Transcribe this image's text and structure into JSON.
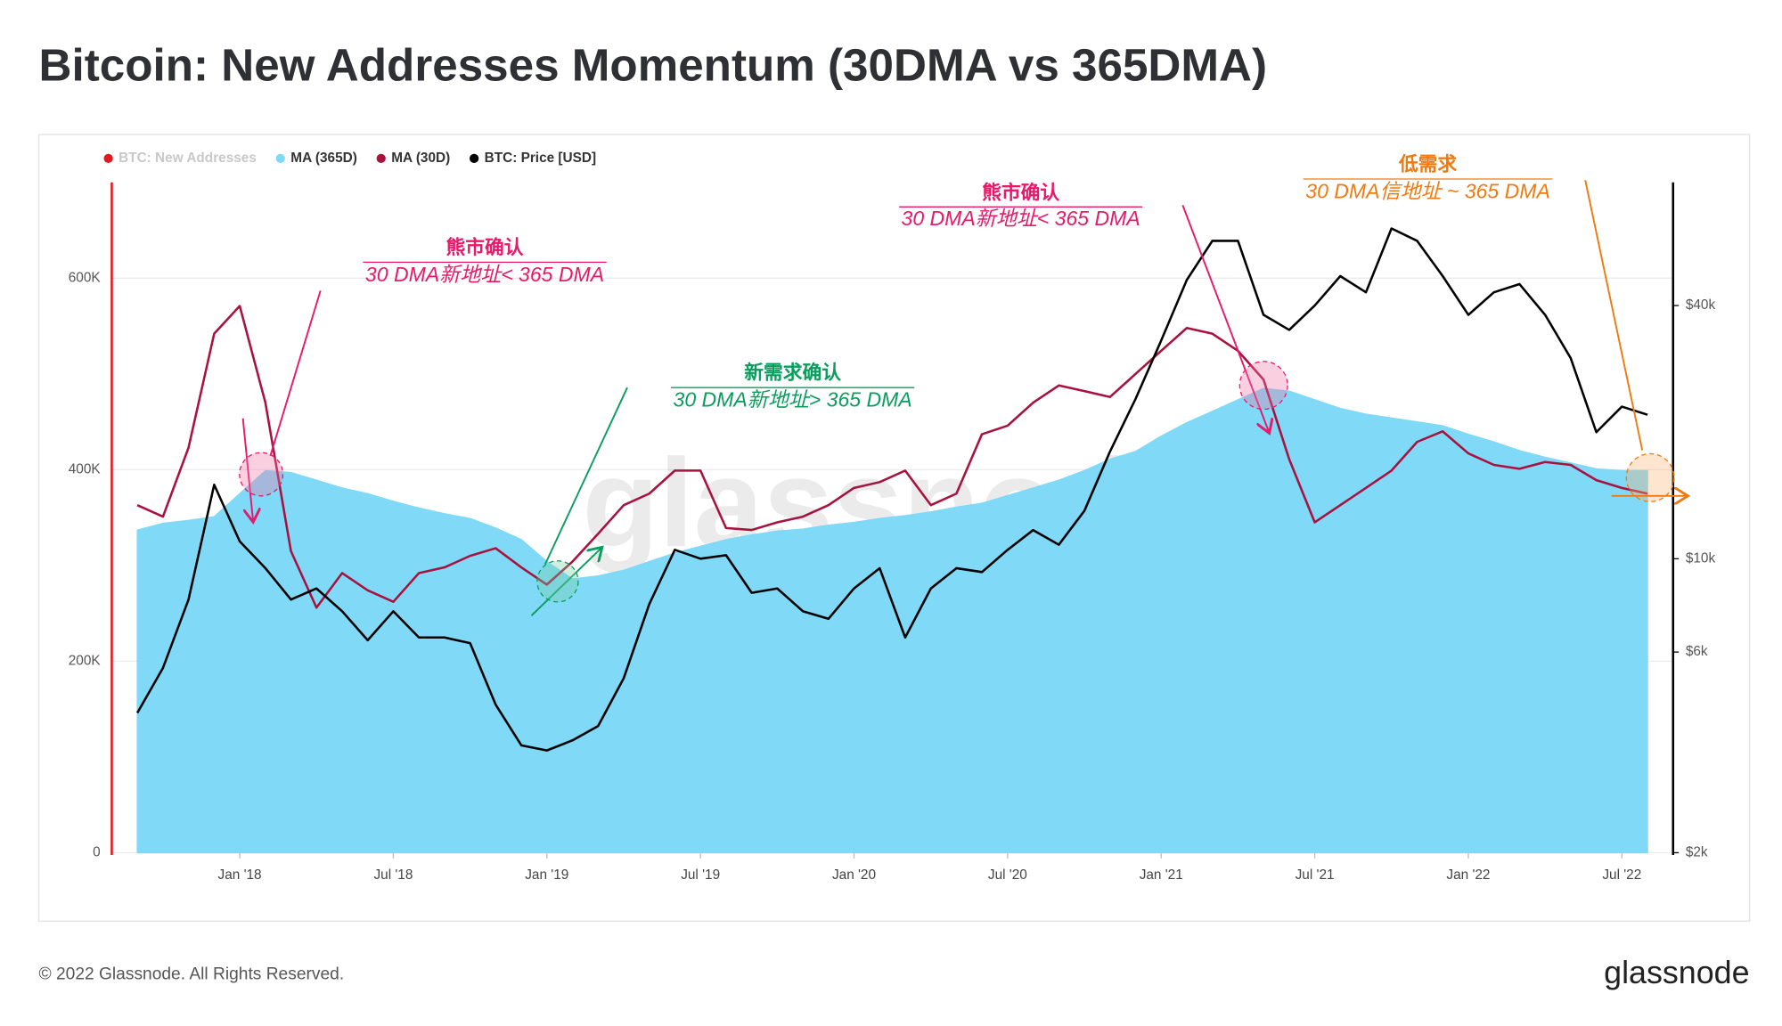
{
  "chart_data": {
    "type": "line",
    "title": "Bitcoin: New Addresses Momentum (30DMA vs 365DMA)",
    "x": [
      "2017-09",
      "2017-10",
      "2017-11",
      "2017-12",
      "2018-01",
      "2018-02",
      "2018-03",
      "2018-04",
      "2018-05",
      "2018-06",
      "2018-07",
      "2018-08",
      "2018-09",
      "2018-10",
      "2018-11",
      "2018-12",
      "2019-01",
      "2019-02",
      "2019-03",
      "2019-04",
      "2019-05",
      "2019-06",
      "2019-07",
      "2019-08",
      "2019-09",
      "2019-10",
      "2019-11",
      "2019-12",
      "2020-01",
      "2020-02",
      "2020-03",
      "2020-04",
      "2020-05",
      "2020-06",
      "2020-07",
      "2020-08",
      "2020-09",
      "2020-10",
      "2020-11",
      "2020-12",
      "2021-01",
      "2021-02",
      "2021-03",
      "2021-04",
      "2021-05",
      "2021-06",
      "2021-07",
      "2021-08",
      "2021-09",
      "2021-10",
      "2021-11",
      "2021-12",
      "2022-01",
      "2022-02",
      "2022-03",
      "2022-04",
      "2022-05",
      "2022-06",
      "2022-07",
      "2022-08"
    ],
    "xlim": [
      "2017-08",
      "2022-09"
    ],
    "xticks": [
      {
        "value": "2018-01",
        "label": "Jan '18"
      },
      {
        "value": "2018-07",
        "label": "Jul '18"
      },
      {
        "value": "2019-01",
        "label": "Jan '19"
      },
      {
        "value": "2019-07",
        "label": "Jul '19"
      },
      {
        "value": "2020-01",
        "label": "Jan '20"
      },
      {
        "value": "2020-07",
        "label": "Jul '20"
      },
      {
        "value": "2021-01",
        "label": "Jan '21"
      },
      {
        "value": "2021-07",
        "label": "Jul '21"
      },
      {
        "value": "2022-01",
        "label": "Jan '22"
      },
      {
        "value": "2022-07",
        "label": "Jul '22"
      }
    ],
    "ylim": [
      0,
      700000
    ],
    "yticks": [
      0,
      {
        "value": 200000,
        "label": "200K"
      },
      {
        "value": 400000,
        "label": "400K"
      },
      {
        "value": 600000,
        "label": "600K"
      }
    ],
    "y2lim": [
      2000,
      78500
    ],
    "y2log": true,
    "y2ticks": [
      {
        "value": 2000,
        "label": "$2k"
      },
      {
        "value": 6000,
        "label": "$6k"
      },
      {
        "value": 10000,
        "label": "$10k"
      },
      {
        "value": 40000,
        "label": "$40k"
      }
    ],
    "grid": true,
    "series": [
      {
        "name": "BTC: New Addresses",
        "color": "#e0191f",
        "hidden": true
      },
      {
        "name": "MA (365D)",
        "color": "#7fd9f7",
        "fill": true,
        "values": [
          337000,
          344000,
          347000,
          351000,
          375000,
          399000,
          397000,
          389000,
          381000,
          375000,
          367000,
          360000,
          354000,
          349000,
          339000,
          327000,
          304000,
          286000,
          289000,
          295000,
          304000,
          313000,
          320000,
          327000,
          332000,
          336000,
          338000,
          342000,
          345000,
          349000,
          352000,
          356000,
          361000,
          365000,
          373000,
          381000,
          389000,
          399000,
          411000,
          419000,
          435000,
          449000,
          461000,
          473000,
          485000,
          482000,
          473000,
          464000,
          458000,
          454000,
          450000,
          446000,
          437000,
          429000,
          420000,
          413000,
          407000,
          401000,
          399000,
          399000
        ]
      },
      {
        "name": "MA (30D)",
        "color": "#a8123e",
        "values": [
          363000,
          351000,
          423000,
          542000,
          571000,
          470000,
          315000,
          256000,
          292000,
          274000,
          262000,
          292000,
          298000,
          310000,
          318000,
          298000,
          280000,
          304000,
          333000,
          363000,
          375000,
          399000,
          399000,
          339000,
          337000,
          345000,
          351000,
          363000,
          381000,
          387000,
          399000,
          363000,
          375000,
          437000,
          446000,
          470000,
          488000,
          482000,
          476000,
          500000,
          524000,
          548000,
          542000,
          524000,
          494000,
          411000,
          345000,
          363000,
          381000,
          399000,
          429000,
          440000,
          417000,
          405000,
          401000,
          408000,
          405000,
          389000,
          381000,
          375000
        ]
      },
      {
        "name": "BTC: Price [USD]",
        "color": "#000000",
        "axis": "y2",
        "values": [
          4300,
          5500,
          8000,
          15000,
          11000,
          9500,
          8000,
          8500,
          7500,
          6400,
          7500,
          6500,
          6500,
          6300,
          4500,
          3600,
          3500,
          3700,
          4000,
          5200,
          7800,
          10500,
          10000,
          10200,
          8300,
          8500,
          7500,
          7200,
          8500,
          9500,
          6500,
          8500,
          9500,
          9300,
          10500,
          11700,
          10800,
          13000,
          18000,
          24000,
          33000,
          46000,
          57000,
          57000,
          38000,
          35000,
          40000,
          47000,
          43000,
          61000,
          57000,
          47000,
          38000,
          43000,
          45000,
          38000,
          30000,
          20000,
          23000,
          22000
        ]
      }
    ],
    "annotations": [
      {
        "title": "熊市确认",
        "text": "30 DMA新地址< 365 DMA",
        "color": "#e8196b"
      },
      {
        "title": "新需求确认",
        "text": "30 DMA新地址> 365 DMA",
        "color": "#0a9d5e"
      },
      {
        "title": "熊市确认",
        "text": "30 DMA新地址< 365 DMA",
        "color": "#e8196b"
      },
      {
        "title": "低需求",
        "text": "30 DMA信地址 ~ 365 DMA",
        "color": "#f07a10"
      }
    ],
    "watermark": "glassnode",
    "footer": "© 2022 Glassnode. All Rights Reserved.",
    "brand": "glassnode"
  }
}
